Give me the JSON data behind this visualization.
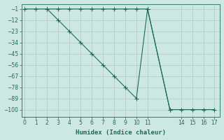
{
  "xlabel": "Humidex (Indice chaleur)",
  "bg_color": "#cce8e0",
  "grid_color": "#aacccc",
  "line_color": "#1a6b5a",
  "x_line1": [
    0,
    1,
    2,
    3,
    4,
    5,
    6,
    7,
    8,
    9,
    10,
    11,
    13,
    14,
    15,
    16,
    17
  ],
  "y_line1": [
    -1,
    -1,
    -1,
    -1,
    -1,
    -1,
    -1,
    -1,
    -1,
    -1,
    -1,
    -1,
    -100,
    -100,
    -100,
    -100,
    -100
  ],
  "x_line2": [
    2,
    3,
    4,
    5,
    6,
    7,
    8,
    9,
    10,
    11,
    13
  ],
  "y_line2": [
    -1,
    -12,
    -23,
    -34,
    -45,
    -56,
    -67,
    -78,
    -89,
    -1,
    -100
  ],
  "xlim": [
    -0.3,
    17.5
  ],
  "ylim": [
    -107,
    4
  ],
  "yticks": [
    -1,
    -12,
    -23,
    -34,
    -45,
    -56,
    -67,
    -78,
    -89,
    -100
  ],
  "xticks": [
    0,
    1,
    2,
    3,
    4,
    5,
    6,
    7,
    8,
    9,
    10,
    11,
    14,
    15,
    16,
    17
  ],
  "marker_size": 4,
  "line_width": 0.8
}
